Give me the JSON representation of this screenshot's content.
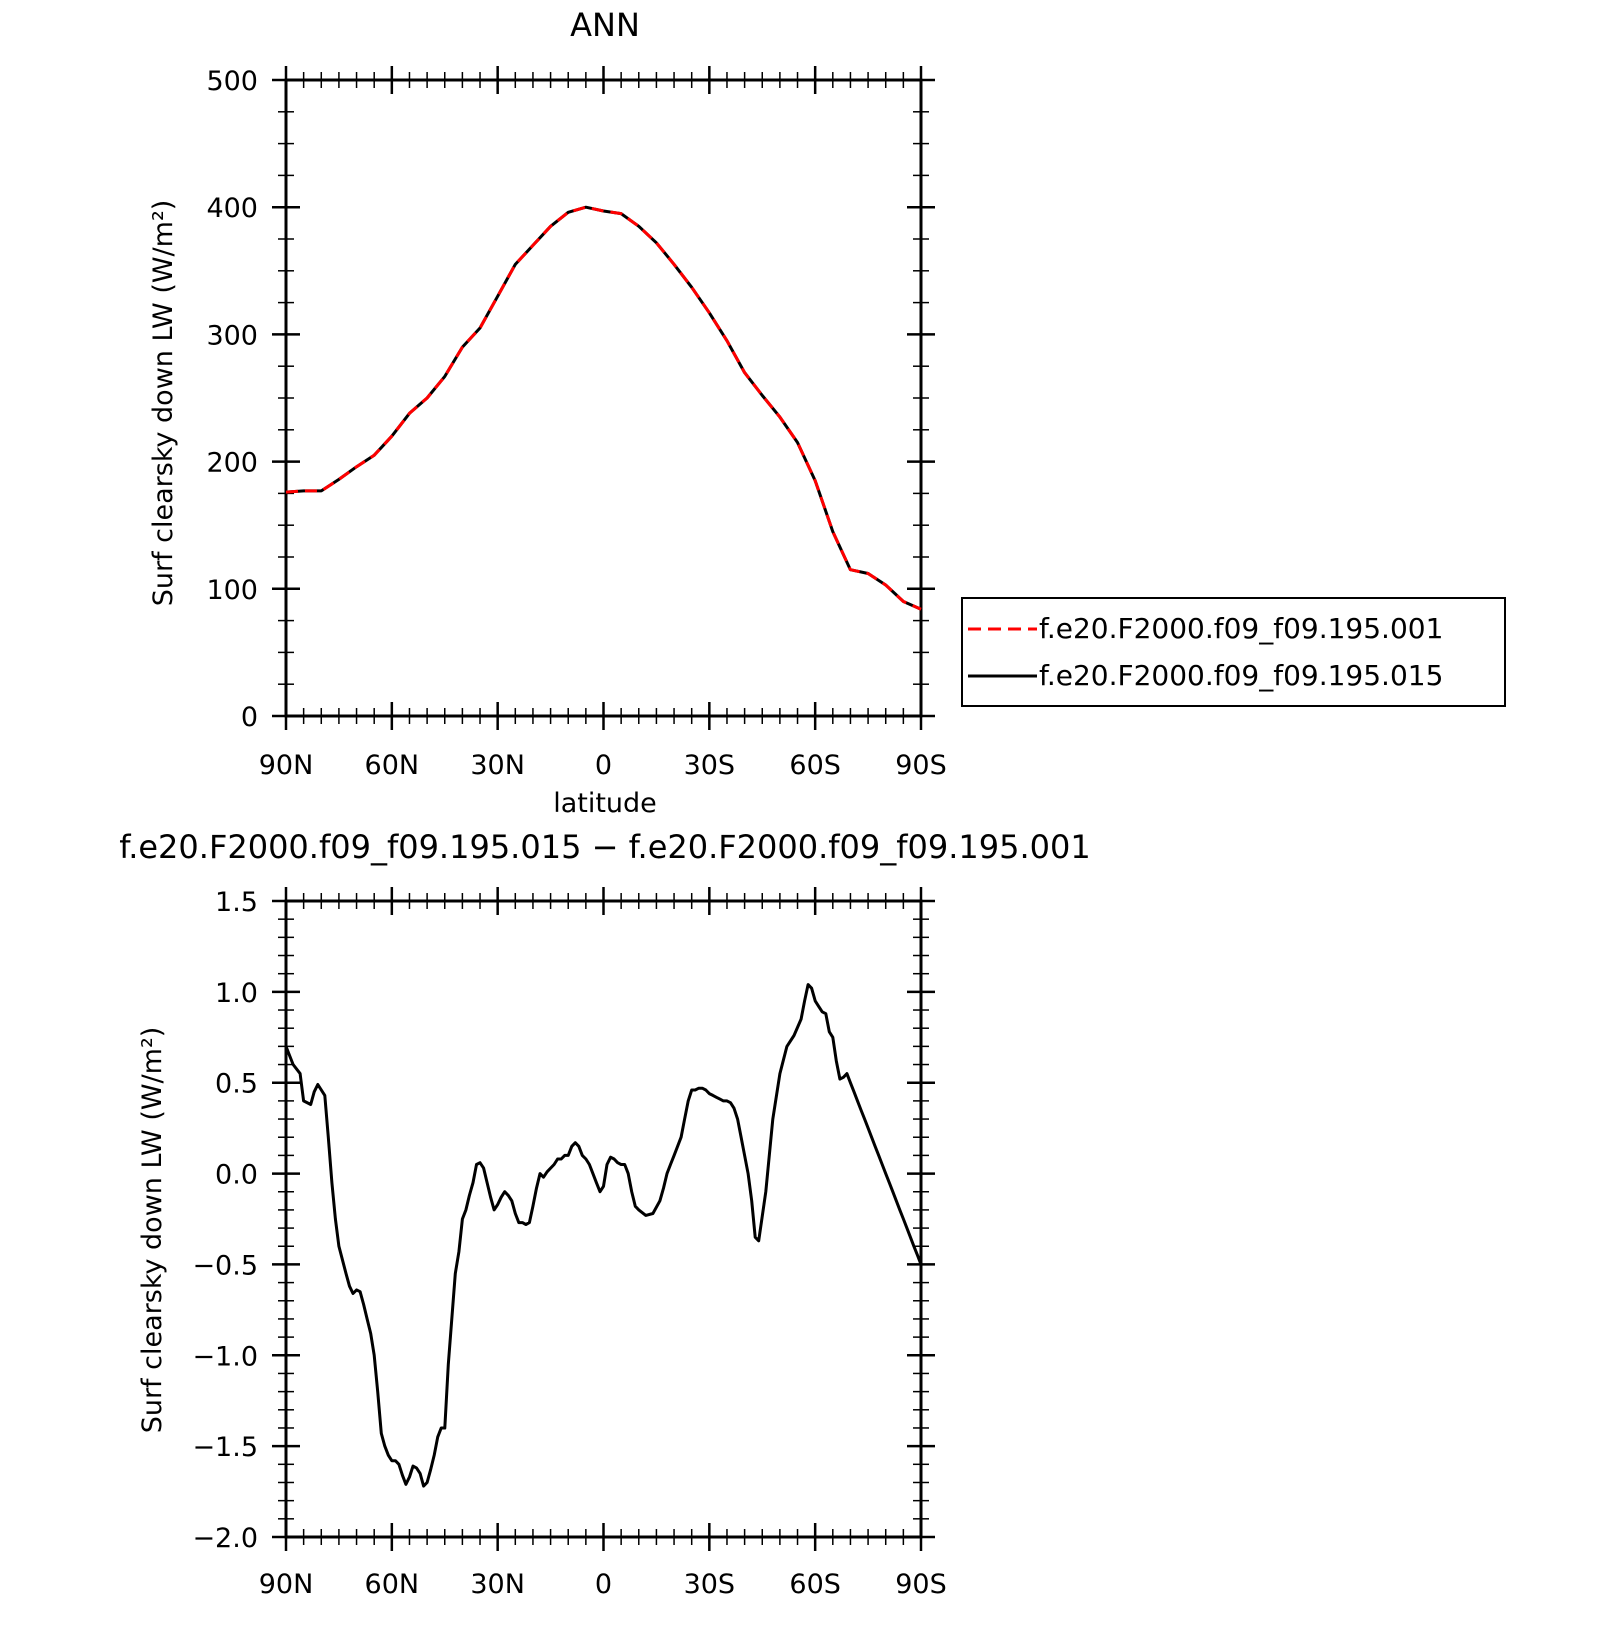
{
  "chart_data": [
    {
      "type": "line",
      "title": "ANN",
      "xlabel": "latitude",
      "ylabel": "Surf clearsky down LW (W/m²)",
      "xlim": [
        90,
        -90
      ],
      "ylim": [
        0,
        500
      ],
      "x_ticks": [
        90,
        60,
        30,
        0,
        -30,
        -60,
        -90
      ],
      "x_tick_labels": [
        "90N",
        "60N",
        "30N",
        "0",
        "30S",
        "60S",
        "90S"
      ],
      "y_ticks": [
        0,
        100,
        200,
        300,
        400,
        500
      ],
      "y_tick_labels": [
        "0",
        "100",
        "200",
        "300",
        "400",
        "500"
      ],
      "legend_position": "right",
      "series": [
        {
          "name": "f.e20.F2000.f09_f09.195.001",
          "color": "#ff0000",
          "dash": "dashed",
          "x": [
            90,
            85,
            80,
            75,
            70,
            65,
            60,
            55,
            50,
            45,
            40,
            35,
            30,
            25,
            20,
            15,
            10,
            5,
            0,
            -5,
            -10,
            -15,
            -20,
            -25,
            -30,
            -35,
            -40,
            -45,
            -50,
            -55,
            -60,
            -65,
            -70,
            -75,
            -80,
            -85,
            -90
          ],
          "values": [
            176,
            177,
            177,
            186,
            196,
            205,
            220,
            238,
            250,
            267,
            290,
            305,
            330,
            355,
            370,
            385,
            396,
            400,
            397,
            395,
            385,
            372,
            355,
            337,
            317,
            295,
            270,
            252,
            235,
            215,
            185,
            145,
            115,
            112,
            103,
            90,
            84
          ]
        },
        {
          "name": "f.e20.F2000.f09_f09.195.015",
          "color": "#000000",
          "dash": "solid",
          "x": [
            90,
            85,
            80,
            75,
            70,
            65,
            60,
            55,
            50,
            45,
            40,
            35,
            30,
            25,
            20,
            15,
            10,
            5,
            0,
            -5,
            -10,
            -15,
            -20,
            -25,
            -30,
            -35,
            -40,
            -45,
            -50,
            -55,
            -60,
            -65,
            -70,
            -75,
            -80,
            -85,
            -90
          ],
          "values": [
            176,
            177,
            177,
            186,
            196,
            205,
            220,
            238,
            250,
            267,
            290,
            305,
            330,
            355,
            370,
            385,
            396,
            400,
            397,
            395,
            385,
            372,
            355,
            337,
            317,
            295,
            270,
            252,
            235,
            215,
            185,
            145,
            115,
            112,
            103,
            90,
            84
          ]
        }
      ]
    },
    {
      "type": "line",
      "title": "f.e20.F2000.f09_f09.195.015 − f.e20.F2000.f09_f09.195.001",
      "xlabel": "latitude",
      "ylabel": "Surf clearsky down LW (W/m²)",
      "xlim": [
        90,
        -90
      ],
      "ylim": [
        -2.0,
        1.5
      ],
      "x_ticks": [
        90,
        60,
        30,
        0,
        -30,
        -60,
        -90
      ],
      "x_tick_labels": [
        "90N",
        "60N",
        "30N",
        "0",
        "30S",
        "60S",
        "90S"
      ],
      "y_ticks": [
        -2.0,
        -1.5,
        -1.0,
        -0.5,
        0.0,
        0.5,
        1.0,
        1.5
      ],
      "y_tick_labels": [
        "−2.0",
        "−1.5",
        "−1.0",
        "−0.5",
        "0.0",
        "0.5",
        "1.0",
        "1.5"
      ],
      "series": [
        {
          "color": "#000000",
          "dash": "solid",
          "x": [
            90,
            88,
            86,
            85,
            83,
            82,
            81,
            79,
            78,
            77,
            76,
            75,
            73,
            72,
            71,
            70,
            69,
            68,
            67,
            66,
            65,
            64,
            63,
            62,
            61,
            60,
            59,
            58,
            57,
            56,
            55,
            54,
            53,
            52,
            51,
            50,
            49,
            48,
            47,
            46,
            45,
            44,
            43,
            42,
            41,
            40,
            39,
            38,
            37,
            36,
            35,
            34,
            33,
            32,
            31,
            30,
            29,
            28,
            27,
            26,
            25,
            24,
            23,
            22,
            21,
            20,
            19,
            18,
            17,
            16,
            15,
            14,
            13,
            12,
            11,
            10,
            9,
            8,
            7,
            6,
            5,
            4,
            3,
            2,
            1,
            0,
            -1,
            -2,
            -3,
            -4,
            -5,
            -6,
            -7,
            -8,
            -9,
            -10,
            -12,
            -14,
            -16,
            -17,
            -18,
            -19,
            -20,
            -22,
            -23,
            -24,
            -25,
            -26,
            -27,
            -28,
            -29,
            -30,
            -31,
            -32,
            -33,
            -34,
            -35,
            -36,
            -37,
            -38,
            -39,
            -40,
            -41,
            -42,
            -43,
            -44,
            -46,
            -48,
            -50,
            -52,
            -54,
            -56,
            -57,
            -58,
            -59,
            -60,
            -61,
            -62,
            -63,
            -64,
            -65,
            -66,
            -67,
            -68,
            -69,
            -70,
            -71,
            -72,
            -73,
            -74,
            -75,
            -76,
            -77,
            -78,
            -79,
            -80,
            -81,
            -82,
            -83,
            -84,
            -85,
            -86,
            -87,
            -88,
            -89,
            -90
          ],
          "values": [
            0.7,
            0.6,
            0.55,
            0.4,
            0.38,
            0.45,
            0.49,
            0.43,
            0.2,
            -0.05,
            -0.25,
            -0.4,
            -0.55,
            -0.62,
            -0.66,
            -0.64,
            -0.65,
            -0.72,
            -0.8,
            -0.88,
            -1.0,
            -1.2,
            -1.43,
            -1.5,
            -1.55,
            -1.58,
            -1.58,
            -1.6,
            -1.66,
            -1.71,
            -1.67,
            -1.61,
            -1.62,
            -1.65,
            -1.72,
            -1.7,
            -1.63,
            -1.55,
            -1.45,
            -1.4,
            -1.4,
            -1.05,
            -0.8,
            -0.55,
            -0.43,
            -0.25,
            -0.2,
            -0.12,
            -0.05,
            0.05,
            0.06,
            0.03,
            -0.05,
            -0.13,
            -0.2,
            -0.17,
            -0.13,
            -0.1,
            -0.12,
            -0.15,
            -0.22,
            -0.27,
            -0.27,
            -0.28,
            -0.27,
            -0.18,
            -0.08,
            0.0,
            -0.02,
            0.01,
            0.03,
            0.05,
            0.08,
            0.08,
            0.1,
            0.1,
            0.15,
            0.17,
            0.15,
            0.1,
            0.08,
            0.05,
            0.0,
            -0.05,
            -0.1,
            -0.07,
            0.05,
            0.09,
            0.08,
            0.06,
            0.05,
            0.05,
            0.0,
            -0.1,
            -0.18,
            -0.2,
            -0.23,
            -0.22,
            -0.15,
            -0.08,
            0.0,
            0.05,
            0.1,
            0.2,
            0.3,
            0.4,
            0.46,
            0.46,
            0.47,
            0.47,
            0.46,
            0.44,
            0.43,
            0.42,
            0.41,
            0.4,
            0.4,
            0.39,
            0.36,
            0.3,
            0.2,
            0.1,
            0.0,
            -0.15,
            -0.35,
            -0.37,
            -0.1,
            0.3,
            0.55,
            0.7,
            0.76,
            0.85,
            0.95,
            1.04,
            1.02,
            0.95,
            0.92,
            0.89,
            0.88,
            0.78,
            0.75,
            0.62,
            0.52,
            0.53,
            0.55,
            0.5,
            0.45,
            0.4,
            0.35,
            0.3,
            0.25,
            0.2,
            0.15,
            0.1,
            0.05,
            0.0,
            -0.05,
            -0.1,
            -0.15,
            -0.2,
            -0.25,
            -0.3,
            -0.35,
            -0.4,
            -0.45,
            -0.5
          ]
        }
      ]
    }
  ],
  "legend": {
    "items": [
      {
        "label": "f.e20.F2000.f09_f09.195.001",
        "color": "#ff0000",
        "dash": "dashed"
      },
      {
        "label": "f.e20.F2000.f09_f09.195.015",
        "color": "#000000",
        "dash": "solid"
      }
    ]
  }
}
